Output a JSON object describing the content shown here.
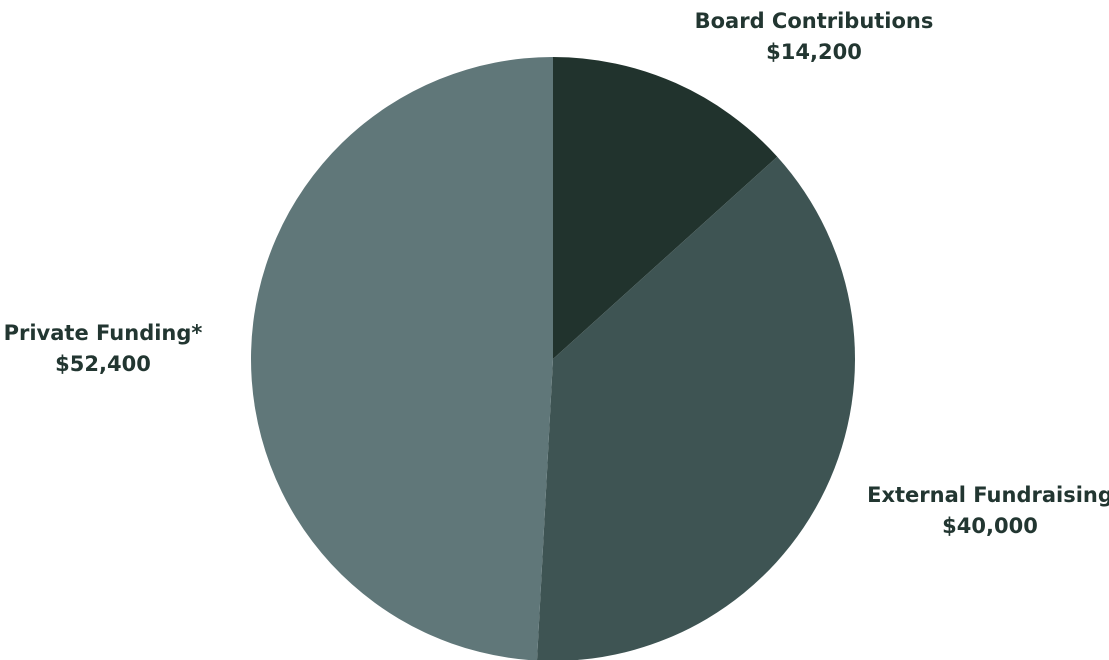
{
  "chart_data": {
    "type": "pie",
    "title": "",
    "start_angle_deg": 0,
    "direction": "clockwise",
    "slices": [
      {
        "label": "Board Contributions",
        "value": 14200,
        "value_label": "$14,200",
        "color": "#21332d",
        "label_position": "top-right"
      },
      {
        "label": "External Fundraising",
        "value": 40000,
        "value_label": "$40,000",
        "color": "#3e5453",
        "label_position": "bottom-right"
      },
      {
        "label": "Private Funding*",
        "value": 52400,
        "value_label": "$52,400",
        "color": "#607779",
        "label_position": "left"
      }
    ]
  }
}
